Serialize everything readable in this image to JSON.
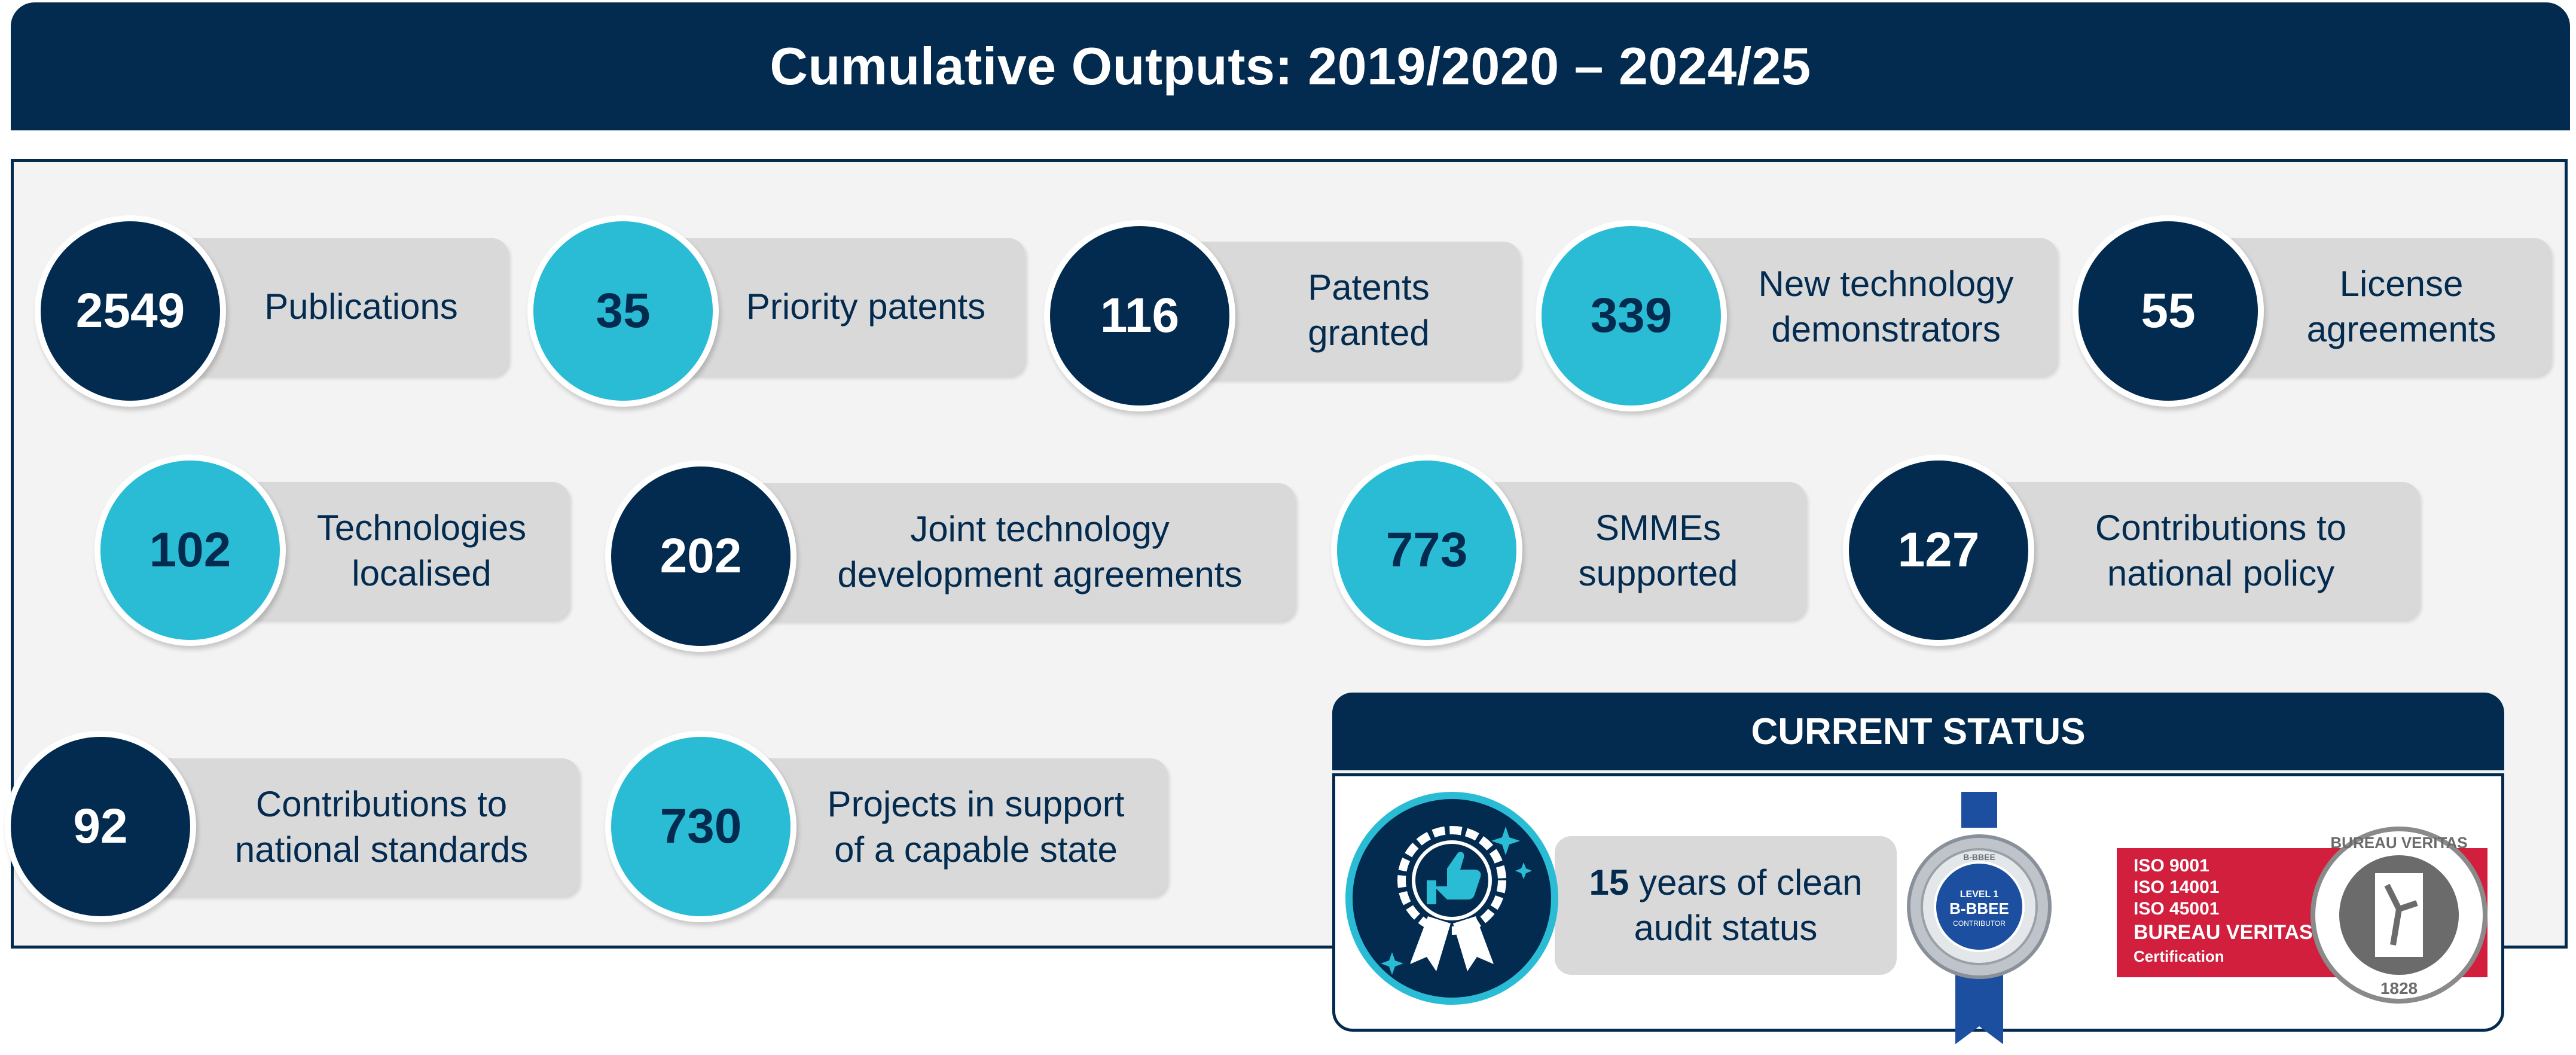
{
  "header": {
    "title": "Cumulative Outputs: 2019/2020 – 2024/25"
  },
  "stats": [
    {
      "value": "2549",
      "label": "Publications"
    },
    {
      "value": "35",
      "label": "Priority patents"
    },
    {
      "value": "116",
      "label": "Patents granted"
    },
    {
      "value": "339",
      "label": "New technology demonstrators"
    },
    {
      "value": "55",
      "label": "License agreements"
    },
    {
      "value": "102",
      "label": "Technologies localised"
    },
    {
      "value": "202",
      "label": "Joint technology development agreements"
    },
    {
      "value": "773",
      "label": "SMMEs supported"
    },
    {
      "value": "127",
      "label": "Contributions to national policy"
    },
    {
      "value": "92",
      "label": "Contributions to national standards"
    },
    {
      "value": "730",
      "label": "Projects in support of a capable state"
    }
  ],
  "status": {
    "heading": "CURRENT STATUS",
    "audit_years": "15",
    "audit_text": "years of clean audit status",
    "bbbee": {
      "top": "B-BBEE",
      "level": "LEVEL 1",
      "main": "B-BBEE",
      "sub": "CONTRIBUTOR"
    },
    "bureau": {
      "iso_lines": [
        "ISO 9001",
        "ISO 14001",
        "ISO 45001"
      ],
      "name": "BUREAU VERITAS",
      "cert": "Certification",
      "seal_text": "BUREAU VERITAS",
      "seal_year": "1828"
    }
  },
  "colors": {
    "navy": "#032b4f",
    "cyan": "#2bbcd5",
    "pill": "#d9d9d9",
    "panel": "#f3f3f3",
    "bv_red": "#d11f3d"
  }
}
